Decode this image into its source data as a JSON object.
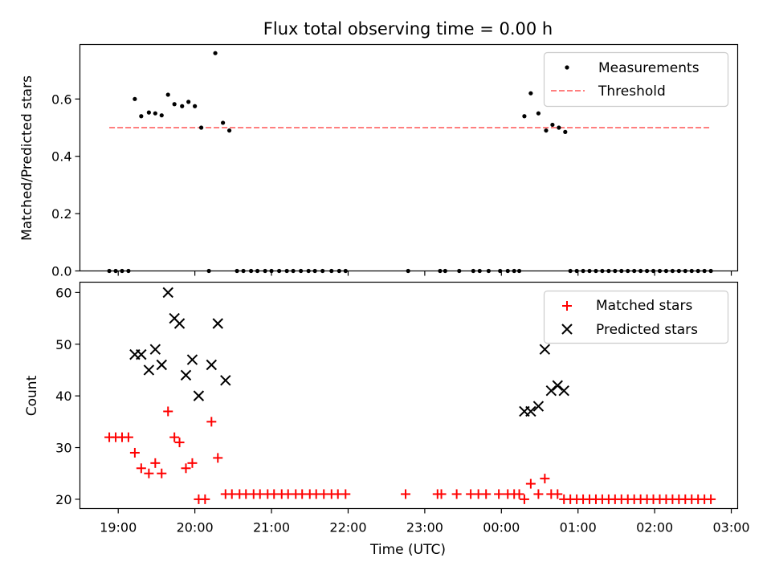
{
  "chart_data": [
    {
      "type": "scatter",
      "title": "Flux total observing time = 0.00 h",
      "xlabel": "",
      "ylabel": "Matched/Predicted stars",
      "ylim": [
        0,
        0.79
      ],
      "yticks": [
        "0.0",
        "0.2",
        "0.4",
        "0.6"
      ],
      "legend_position": "top-right",
      "series": [
        {
          "name": "Measurements",
          "kind": "dots",
          "color": "#000000",
          "points": [
            [
              "18:53",
              0
            ],
            [
              "18:58",
              0
            ],
            [
              "19:03",
              0
            ],
            [
              "19:08",
              0
            ],
            [
              "19:13",
              0.6
            ],
            [
              "19:18",
              0.54
            ],
            [
              "19:24",
              0.553
            ],
            [
              "19:29",
              0.55
            ],
            [
              "19:34",
              0.543
            ],
            [
              "19:39",
              0.615
            ],
            [
              "19:44",
              0.582
            ],
            [
              "19:50",
              0.575
            ],
            [
              "19:55",
              0.59
            ],
            [
              "20:00",
              0.575
            ],
            [
              "20:05",
              0.5
            ],
            [
              "20:11",
              0
            ],
            [
              "20:16",
              0.76
            ],
            [
              "20:22",
              0.517
            ],
            [
              "20:27",
              0.49
            ],
            [
              "20:33",
              0
            ],
            [
              "20:38",
              0
            ],
            [
              "20:44",
              0
            ],
            [
              "20:49",
              0
            ],
            [
              "20:55",
              0
            ],
            [
              "21:00",
              0
            ],
            [
              "21:06",
              0
            ],
            [
              "21:12",
              0
            ],
            [
              "21:17",
              0
            ],
            [
              "21:23",
              0
            ],
            [
              "21:29",
              0
            ],
            [
              "21:34",
              0
            ],
            [
              "21:40",
              0
            ],
            [
              "21:47",
              0
            ],
            [
              "21:53",
              0
            ],
            [
              "21:58",
              0
            ],
            [
              "22:47",
              0
            ],
            [
              "23:12",
              0
            ],
            [
              "23:16",
              0
            ],
            [
              "23:27",
              0
            ],
            [
              "23:38",
              0
            ],
            [
              "23:43",
              0
            ],
            [
              "23:50",
              0
            ],
            [
              "23:59",
              0
            ],
            [
              "24:05",
              0
            ],
            [
              "24:10",
              0
            ],
            [
              "24:14",
              0
            ],
            [
              "24:18",
              0.54
            ],
            [
              "24:23",
              0.62
            ],
            [
              "24:29",
              0.55
            ],
            [
              "24:35",
              0.49
            ],
            [
              "24:40",
              0.51
            ],
            [
              "24:45",
              0.5
            ],
            [
              "24:50",
              0.485
            ],
            [
              "24:54",
              0
            ],
            [
              "24:59",
              0
            ],
            [
              "25:04",
              0
            ],
            [
              "25:09",
              0
            ],
            [
              "25:14",
              0
            ],
            [
              "25:19",
              0
            ],
            [
              "25:24",
              0
            ],
            [
              "25:29",
              0
            ],
            [
              "25:34",
              0
            ],
            [
              "25:39",
              0
            ],
            [
              "25:44",
              0
            ],
            [
              "25:49",
              0
            ],
            [
              "25:54",
              0
            ],
            [
              "25:59",
              0
            ],
            [
              "26:04",
              0
            ],
            [
              "26:09",
              0
            ],
            [
              "26:14",
              0
            ],
            [
              "26:19",
              0
            ],
            [
              "26:24",
              0
            ],
            [
              "26:29",
              0
            ],
            [
              "26:34",
              0
            ],
            [
              "26:39",
              0
            ],
            [
              "26:44",
              0
            ]
          ]
        },
        {
          "name": "Threshold",
          "kind": "dashed-line",
          "color": "#ff7f7f",
          "points": [
            [
              "18:53",
              0.5
            ],
            [
              "26:44",
              0.5
            ]
          ]
        }
      ]
    },
    {
      "type": "scatter",
      "title": "",
      "xlabel": "Time (UTC)",
      "ylabel": "Count",
      "ylim": [
        18.2,
        62
      ],
      "yticks": [
        "20",
        "30",
        "40",
        "50",
        "60"
      ],
      "xlim": [
        "18:30",
        "27:05"
      ],
      "xticks": [
        "19:00",
        "20:00",
        "21:00",
        "22:00",
        "23:00",
        "00:00",
        "01:00",
        "02:00",
        "03:00"
      ],
      "legend_position": "top-right",
      "series": [
        {
          "name": "Matched stars",
          "kind": "plus",
          "color": "#ff0000",
          "points": [
            [
              "18:53",
              32
            ],
            [
              "18:58",
              32
            ],
            [
              "19:03",
              32
            ],
            [
              "19:08",
              32
            ],
            [
              "19:13",
              29
            ],
            [
              "19:18",
              26
            ],
            [
              "19:24",
              25
            ],
            [
              "19:29",
              27
            ],
            [
              "19:34",
              25
            ],
            [
              "19:39",
              37
            ],
            [
              "19:44",
              32
            ],
            [
              "19:48",
              31
            ],
            [
              "19:53",
              26
            ],
            [
              "19:58",
              27
            ],
            [
              "20:03",
              20
            ],
            [
              "20:08",
              20
            ],
            [
              "20:13",
              35
            ],
            [
              "20:18",
              28
            ],
            [
              "20:24",
              21
            ],
            [
              "20:29",
              21
            ],
            [
              "20:35",
              21
            ],
            [
              "20:40",
              21
            ],
            [
              "20:46",
              21
            ],
            [
              "20:51",
              21
            ],
            [
              "20:57",
              21
            ],
            [
              "21:02",
              21
            ],
            [
              "21:08",
              21
            ],
            [
              "21:13",
              21
            ],
            [
              "21:19",
              21
            ],
            [
              "21:24",
              21
            ],
            [
              "21:30",
              21
            ],
            [
              "21:35",
              21
            ],
            [
              "21:41",
              21
            ],
            [
              "21:47",
              21
            ],
            [
              "21:52",
              21
            ],
            [
              "21:58",
              21
            ],
            [
              "22:45",
              21
            ],
            [
              "23:10",
              21
            ],
            [
              "23:13",
              21
            ],
            [
              "23:25",
              21
            ],
            [
              "23:36",
              21
            ],
            [
              "23:42",
              21
            ],
            [
              "23:48",
              21
            ],
            [
              "23:58",
              21
            ],
            [
              "24:05",
              21
            ],
            [
              "24:10",
              21
            ],
            [
              "24:14",
              21
            ],
            [
              "24:18",
              20
            ],
            [
              "24:23",
              23
            ],
            [
              "24:29",
              21
            ],
            [
              "24:34",
              24
            ],
            [
              "24:39",
              21
            ],
            [
              "24:44",
              21
            ],
            [
              "24:49",
              20
            ],
            [
              "24:54",
              20
            ],
            [
              "24:59",
              20
            ],
            [
              "25:04",
              20
            ],
            [
              "25:09",
              20
            ],
            [
              "25:14",
              20
            ],
            [
              "25:19",
              20
            ],
            [
              "25:24",
              20
            ],
            [
              "25:29",
              20
            ],
            [
              "25:34",
              20
            ],
            [
              "25:39",
              20
            ],
            [
              "25:44",
              20
            ],
            [
              "25:49",
              20
            ],
            [
              "25:54",
              20
            ],
            [
              "25:59",
              20
            ],
            [
              "26:04",
              20
            ],
            [
              "26:09",
              20
            ],
            [
              "26:14",
              20
            ],
            [
              "26:19",
              20
            ],
            [
              "26:24",
              20
            ],
            [
              "26:29",
              20
            ],
            [
              "26:34",
              20
            ],
            [
              "26:39",
              20
            ],
            [
              "26:44",
              20
            ]
          ]
        },
        {
          "name": "Predicted stars",
          "kind": "x",
          "color": "#000000",
          "points": [
            [
              "19:13",
              48
            ],
            [
              "19:18",
              48
            ],
            [
              "19:24",
              45
            ],
            [
              "19:29",
              49
            ],
            [
              "19:34",
              46
            ],
            [
              "19:39",
              60
            ],
            [
              "19:44",
              55
            ],
            [
              "19:48",
              54
            ],
            [
              "19:53",
              44
            ],
            [
              "19:58",
              47
            ],
            [
              "20:03",
              40
            ],
            [
              "20:13",
              46
            ],
            [
              "20:18",
              54
            ],
            [
              "20:24",
              43
            ],
            [
              "24:18",
              37
            ],
            [
              "24:23",
              37
            ],
            [
              "24:29",
              38
            ],
            [
              "24:34",
              49
            ],
            [
              "24:39",
              41
            ],
            [
              "24:44",
              42
            ],
            [
              "24:49",
              41
            ]
          ]
        }
      ]
    }
  ]
}
